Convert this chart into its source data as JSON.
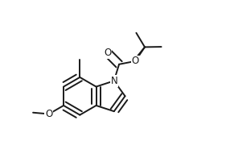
{
  "bg": "#ffffff",
  "lc": "#1a1a1a",
  "lw": 1.4,
  "fs": 8.5,
  "figsize": [
    2.86,
    2.06
  ],
  "dpi": 100,
  "xlim": [
    -0.05,
    1.08
  ],
  "ylim": [
    0.05,
    1.05
  ]
}
